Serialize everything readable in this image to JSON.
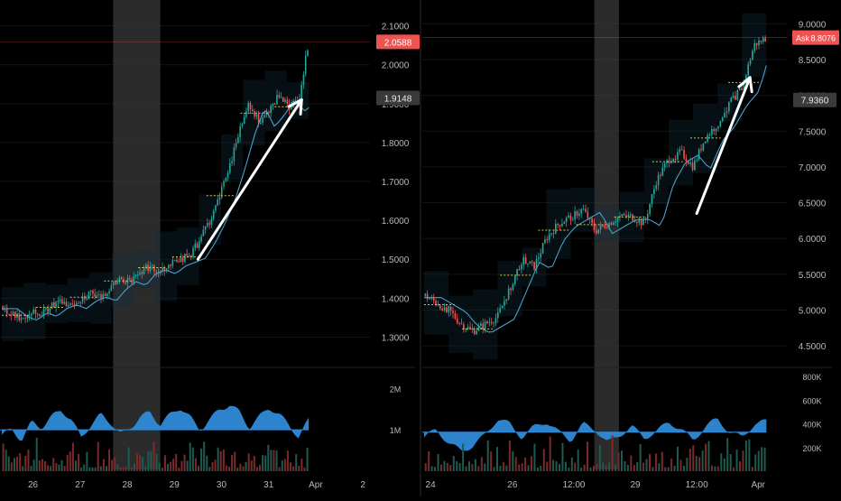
{
  "chart_data": [
    {
      "type": "candlestick",
      "panel": "left",
      "yticks": [
        "2.1000",
        "2.0000",
        "1.9000",
        "1.8000",
        "1.7000",
        "1.6000",
        "1.5000",
        "1.4000",
        "1.3000"
      ],
      "ylim": [
        1.25,
        2.12
      ],
      "xticks": [
        "26",
        "27",
        "28",
        "29",
        "30",
        "31",
        "Apr",
        "2"
      ],
      "x_days": [
        26,
        27,
        28,
        29,
        30,
        31,
        32,
        33
      ],
      "last_price_label": "2.0588",
      "last_price": 2.0588,
      "marker_label": "1.9148",
      "marker_price": 1.9148,
      "close_series": [
        1.38,
        1.36,
        1.35,
        1.37,
        1.36,
        1.38,
        1.39,
        1.38,
        1.4,
        1.41,
        1.4,
        1.43,
        1.45,
        1.44,
        1.47,
        1.48,
        1.47,
        1.49,
        1.5,
        1.51,
        1.55,
        1.6,
        1.66,
        1.74,
        1.83,
        1.9,
        1.85,
        1.88,
        1.92,
        1.89,
        1.91,
        2.06
      ],
      "session_shade": [
        27.7,
        28.7
      ],
      "arrow": {
        "from": [
          29.5,
          1.5
        ],
        "to": [
          31.7,
          1.91
        ]
      },
      "volume": {
        "ticks": [
          "2M",
          "1M"
        ],
        "tick_values": [
          2000000,
          1000000
        ],
        "ylim": [
          0,
          2400000
        ],
        "profile": [
          0.9,
          1.1,
          0.7,
          1.4,
          1.2,
          1.6,
          1.9,
          1.5,
          0.8,
          1.3,
          1.7,
          1.4,
          0.9,
          1.2,
          1.6,
          1.8,
          1.3,
          1.7,
          2.0,
          1.6,
          1.1,
          1.5,
          1.9,
          2.1,
          1.8,
          1.2,
          1.6,
          2.0,
          1.7,
          1.3,
          0.8,
          1.5
        ]
      }
    },
    {
      "type": "candlestick",
      "panel": "right",
      "yticks": [
        "9.0000",
        "8.5000",
        "8.0000",
        "7.5000",
        "7.0000",
        "6.5000",
        "6.0000",
        "5.5000",
        "5.0000",
        "4.5000"
      ],
      "ylim": [
        4.35,
        9.08
      ],
      "xticks": [
        "24",
        "26",
        "12:00",
        "29",
        "12:00",
        "Apr"
      ],
      "x_days": [
        24,
        26,
        27.5,
        29,
        30.5,
        32
      ],
      "last_price_label": "8.8076",
      "last_price": 8.8076,
      "ask_label": "Ask",
      "marker_label": "7.9360",
      "marker_price": 7.936,
      "close_series": [
        5.2,
        5.1,
        5.0,
        4.8,
        4.7,
        4.8,
        4.9,
        5.3,
        5.7,
        5.6,
        6.0,
        6.2,
        6.3,
        6.4,
        6.1,
        6.2,
        6.3,
        6.3,
        6.2,
        6.8,
        7.1,
        7.2,
        7.0,
        7.4,
        7.6,
        7.9,
        8.1,
        8.7,
        8.8
      ],
      "session_shade": [
        28.0,
        28.6
      ],
      "arrow": {
        "from": [
          30.5,
          6.35
        ],
        "to": [
          31.8,
          8.25
        ]
      },
      "volume": {
        "ticks": [
          "800K",
          "600K",
          "400K",
          "200K"
        ],
        "tick_values": [
          800000,
          600000,
          400000,
          200000
        ],
        "ylim": [
          0,
          840000
        ],
        "profile": [
          0.9,
          1.2,
          0.7,
          0.4,
          0.6,
          1.0,
          1.6,
          1.4,
          0.9,
          1.3,
          1.5,
          1.1,
          0.8,
          1.4,
          1.2,
          0.7,
          1.0,
          1.3,
          0.9,
          1.1,
          1.5,
          1.2,
          0.8,
          1.3,
          1.6,
          1.1,
          0.9,
          1.4,
          1.5
        ]
      }
    }
  ]
}
